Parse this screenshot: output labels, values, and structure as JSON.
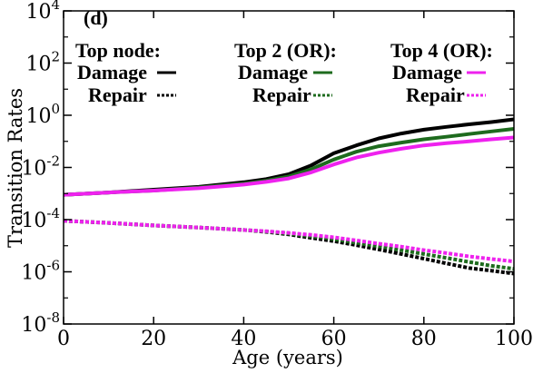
{
  "chart_data": {
    "type": "line",
    "panel_label": "(d)",
    "title": "",
    "xlabel": "Age (years)",
    "ylabel": "Transition Rates",
    "xlim": [
      0,
      100
    ],
    "ylim": [
      1e-08,
      10000.0
    ],
    "y_scale": "log",
    "x_ticks": [
      0,
      20,
      40,
      60,
      80,
      100
    ],
    "x_tick_labels": [
      "0",
      "20",
      "40",
      "60",
      "80",
      "100"
    ],
    "y_tick_exponents": [
      -8,
      -6,
      -4,
      -2,
      0,
      2,
      4
    ],
    "y_tick_base": "10",
    "grid": false,
    "legend_groups": [
      {
        "title": "Top node:",
        "damage_label": "Damage",
        "repair_label": "Repair",
        "color": "#000000"
      },
      {
        "title": "Top 2 (OR):",
        "damage_label": "Damage",
        "repair_label": "Repair",
        "color": "#1e6b1e"
      },
      {
        "title": "Top 4 (OR):",
        "damage_label": "Damage",
        "repair_label": "Repair",
        "color": "#ee22ee"
      }
    ],
    "x": [
      0,
      10,
      20,
      30,
      40,
      45,
      50,
      55,
      60,
      65,
      70,
      75,
      80,
      85,
      90,
      95,
      100
    ],
    "series": [
      {
        "name": "Top node Damage",
        "color": "#000000",
        "style": "solid",
        "values": [
          0.0009,
          0.0011,
          0.0014,
          0.0018,
          0.0027,
          0.0036,
          0.0055,
          0.012,
          0.035,
          0.07,
          0.13,
          0.2,
          0.28,
          0.36,
          0.45,
          0.55,
          0.7
        ]
      },
      {
        "name": "Top 2 Damage",
        "color": "#1e6b1e",
        "style": "solid",
        "values": [
          0.0009,
          0.0011,
          0.0013,
          0.0017,
          0.0024,
          0.0031,
          0.0045,
          0.0085,
          0.02,
          0.04,
          0.065,
          0.09,
          0.12,
          0.15,
          0.19,
          0.24,
          0.3
        ]
      },
      {
        "name": "Top 4 Damage",
        "color": "#ee22ee",
        "style": "solid",
        "values": [
          0.0009,
          0.0011,
          0.0013,
          0.0016,
          0.0022,
          0.0028,
          0.0038,
          0.0065,
          0.013,
          0.024,
          0.037,
          0.052,
          0.07,
          0.085,
          0.1,
          0.12,
          0.14
        ]
      },
      {
        "name": "Top node Repair",
        "color": "#000000",
        "style": "dashed",
        "values": [
          9e-05,
          7.5e-05,
          6e-05,
          5e-05,
          4e-05,
          3.4e-05,
          2.7e-05,
          2e-05,
          1.5e-05,
          1.05e-05,
          7.2e-06,
          4.8e-06,
          3.2e-06,
          2.1e-06,
          1.4e-06,
          1.1e-06,
          8.5e-07
        ]
      },
      {
        "name": "Top 2 Repair",
        "color": "#1e6b1e",
        "style": "dashed",
        "values": [
          9e-05,
          7.5e-05,
          6e-05,
          5e-05,
          4e-05,
          3.5e-05,
          2.9e-05,
          2.3e-05,
          1.8e-05,
          1.3e-05,
          9.5e-06,
          6.8e-06,
          4.8e-06,
          3.4e-06,
          2.4e-06,
          1.7e-06,
          1.3e-06
        ]
      },
      {
        "name": "Top 4 Repair",
        "color": "#ee22ee",
        "style": "dashed",
        "values": [
          9e-05,
          7.5e-05,
          6e-05,
          5e-05,
          4e-05,
          3.6e-05,
          3.1e-05,
          2.6e-05,
          2.1e-05,
          1.6e-05,
          1.2e-05,
          9.2e-06,
          6.8e-06,
          5.2e-06,
          3.9e-06,
          3.1e-06,
          2.5e-06
        ]
      }
    ]
  }
}
